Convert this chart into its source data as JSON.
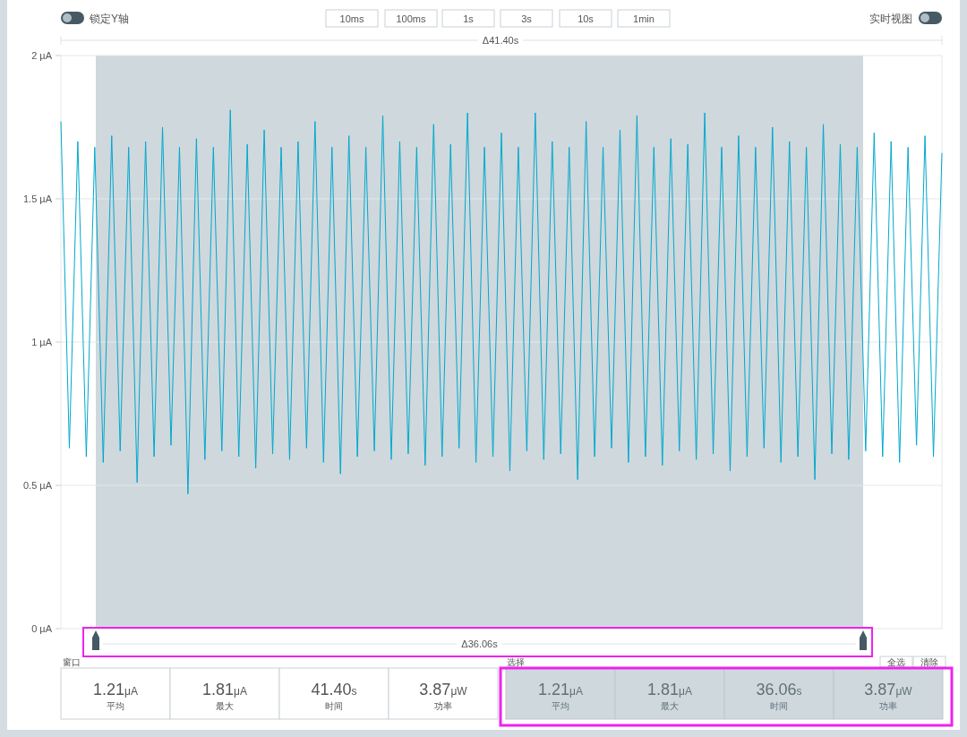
{
  "chart_data": {
    "type": "line",
    "categories": [
      null,
      null,
      null,
      null,
      null,
      null,
      null,
      null,
      null,
      null,
      null,
      null,
      null,
      null,
      null,
      null,
      null,
      null,
      null,
      null,
      null,
      null,
      null,
      null,
      null,
      null,
      null,
      null,
      null,
      null,
      null,
      null,
      null,
      null,
      null,
      null,
      null,
      null,
      null,
      null,
      null,
      null,
      null,
      null,
      null,
      null,
      null,
      null,
      null,
      null,
      null,
      null,
      null,
      null,
      null,
      null,
      null,
      null,
      null,
      null,
      null,
      null,
      null,
      null,
      null,
      null,
      null,
      null,
      null,
      null,
      null,
      null,
      null,
      null,
      null,
      null,
      null,
      null,
      null,
      null,
      null,
      null,
      null,
      null,
      null,
      null,
      null,
      null,
      null,
      null,
      null,
      null,
      null,
      null,
      null,
      null,
      null,
      null,
      null,
      null,
      null,
      null,
      null,
      null,
      null
    ],
    "series": [
      {
        "color": "#00a8cc",
        "values": [
          1.77,
          0.63,
          1.7,
          0.6,
          1.68,
          0.58,
          1.72,
          0.62,
          1.68,
          0.51,
          1.7,
          0.6,
          1.75,
          0.64,
          1.68,
          0.47,
          1.71,
          0.59,
          1.68,
          0.62,
          1.81,
          0.6,
          1.69,
          0.56,
          1.74,
          0.61,
          1.68,
          0.59,
          1.7,
          0.63,
          1.77,
          0.58,
          1.68,
          0.54,
          1.72,
          0.6,
          1.68,
          0.62,
          1.79,
          0.59,
          1.7,
          0.61,
          1.68,
          0.57,
          1.76,
          0.6,
          1.69,
          0.63,
          1.8,
          0.58,
          1.68,
          0.6,
          1.73,
          0.55,
          1.68,
          0.62,
          1.8,
          0.59,
          1.7,
          0.61,
          1.68,
          0.52,
          1.77,
          0.6,
          1.68,
          0.63,
          1.74,
          0.58,
          1.79,
          0.6,
          1.68,
          0.57,
          1.71,
          0.62,
          1.69,
          0.59,
          1.8,
          0.61,
          1.68,
          0.55,
          1.72,
          0.6,
          1.68,
          0.63,
          1.75,
          0.58,
          1.7,
          0.6,
          1.68,
          0.52,
          1.76,
          0.61,
          1.69,
          0.59,
          1.68,
          0.62,
          1.73,
          0.6,
          1.7,
          0.58,
          1.68,
          0.64,
          1.72,
          0.6,
          1.66
        ]
      }
    ],
    "ylim": [
      0,
      2
    ],
    "yticks": [
      {
        "value": 0,
        "label": "0 µA"
      },
      {
        "value": 0.5,
        "label": "0.5 µA"
      },
      {
        "value": 1,
        "label": "1 µA"
      },
      {
        "value": 1.5,
        "label": "1.5 µA"
      },
      {
        "value": 2,
        "label": "2 µA"
      }
    ],
    "grid": "y",
    "tick_labels": "y",
    "annotations": [
      "锁定Y轴",
      "实时视图",
      "10ms",
      "100ms",
      "1s",
      "3s",
      "10s",
      "1min",
      "Δ41.40s",
      "窗口",
      "选择",
      "全选",
      "清除",
      "1.21",
      "μA",
      "平均",
      "1.81",
      "μA",
      "最大",
      "41.40",
      "s",
      "时间",
      "3.87",
      "μW",
      "功率",
      "1.21",
      "μA",
      "平均",
      "1.81",
      "μA",
      "最大",
      "36.06",
      "s",
      "时间",
      "3.87",
      "μW",
      "功率",
      "Δ36.06s"
    ]
  }
}
